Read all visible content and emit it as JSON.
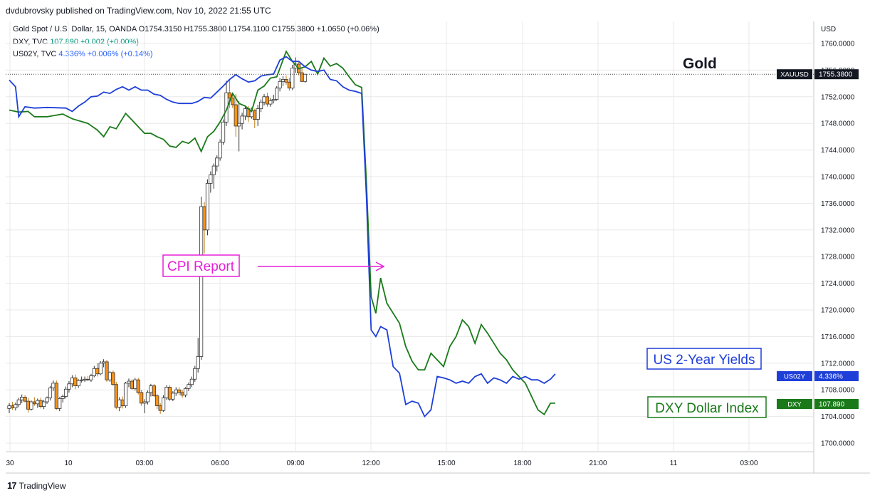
{
  "publisher_line": "dvdubrovsky published on TradingView.com, Nov 10, 2022 21:55 UTC",
  "legend": {
    "gold": {
      "symbol": "Gold Spot / U.S. Dollar, 15, OANDA",
      "ohlc": "O1754.3150  H1755.3800  L1754.1100  C1755.3800",
      "change": "+1.0650 (+0.06%)"
    },
    "dxy": {
      "symbol": "DXY, TVC",
      "value": "107.890",
      "change": "+0.002 (+0.00%)"
    },
    "us02y": {
      "symbol": "US02Y, TVC",
      "value": "4.336%",
      "change": "+0.006% (+0.14%)"
    }
  },
  "footer": {
    "brand": "TradingView",
    "mark": "17"
  },
  "colors": {
    "up": "#ffffff",
    "down": "#f7931a",
    "dxy": "#1a7a1a",
    "us02y": "#1e3fd8",
    "annotation": "#e620d8",
    "grid": "#e8e8e8"
  },
  "chart_data": {
    "type": "candlestick",
    "title": "Gold Spot / U.S. Dollar",
    "ylim": [
      1698.0,
      1763.0
    ],
    "y_ticks": [
      "1760.0000",
      "1756.0000",
      "1752.0000",
      "1748.0000",
      "1744.0000",
      "1740.0000",
      "1736.0000",
      "1732.0000",
      "1728.0000",
      "1724.0000",
      "1720.0000",
      "1716.0000",
      "1712.0000",
      "1708.0000",
      "1704.0000",
      "1700.0000"
    ],
    "x_ticks": [
      "30",
      "10",
      "03:00",
      "06:00",
      "09:00",
      "12:00",
      "15:00",
      "18:00",
      "21:00",
      "11",
      "03:00"
    ],
    "price_tags": {
      "xauusd": {
        "label": "XAUUSD",
        "value": "1755.3800"
      },
      "us02y": {
        "label": "US02Y",
        "value": "4.336%"
      },
      "dxy": {
        "label": "DXY",
        "value": "107.890"
      }
    },
    "annotations": {
      "cpi": "CPI Report",
      "gold": "Gold",
      "us2y": "US 2-Year Yields",
      "dxy": "DXY Dollar Index"
    },
    "candles": [
      [
        1705.2,
        1706.0,
        1704.5,
        1705.6
      ],
      [
        1705.6,
        1706.2,
        1705.0,
        1705.3
      ],
      [
        1705.3,
        1706.1,
        1704.9,
        1705.8
      ],
      [
        1705.8,
        1706.8,
        1705.4,
        1706.5
      ],
      [
        1706.5,
        1707.3,
        1706.0,
        1706.9
      ],
      [
        1706.9,
        1707.2,
        1706.1,
        1706.3
      ],
      [
        1706.3,
        1706.8,
        1704.6,
        1705.1
      ],
      [
        1705.1,
        1706.4,
        1704.9,
        1706.2
      ],
      [
        1706.2,
        1706.9,
        1705.6,
        1705.9
      ],
      [
        1705.9,
        1706.7,
        1705.3,
        1706.4
      ],
      [
        1706.4,
        1706.8,
        1705.2,
        1705.5
      ],
      [
        1705.5,
        1706.5,
        1705.1,
        1706.2
      ],
      [
        1706.2,
        1707.0,
        1705.9,
        1706.8
      ],
      [
        1706.8,
        1708.6,
        1706.4,
        1708.3
      ],
      [
        1708.3,
        1709.4,
        1707.8,
        1709.0
      ],
      [
        1709.0,
        1709.4,
        1705.0,
        1705.2
      ],
      [
        1705.2,
        1706.9,
        1704.8,
        1706.7
      ],
      [
        1706.7,
        1707.3,
        1706.1,
        1707.0
      ],
      [
        1707.0,
        1708.5,
        1706.7,
        1708.1
      ],
      [
        1708.1,
        1709.3,
        1707.6,
        1708.9
      ],
      [
        1708.9,
        1710.2,
        1708.4,
        1709.8
      ],
      [
        1709.8,
        1710.3,
        1708.1,
        1708.6
      ],
      [
        1708.6,
        1709.6,
        1708.3,
        1709.4
      ],
      [
        1709.4,
        1710.0,
        1709.1,
        1709.5
      ],
      [
        1709.5,
        1710.0,
        1709.2,
        1709.6
      ],
      [
        1709.6,
        1710.1,
        1709.3,
        1709.5
      ],
      [
        1709.5,
        1710.4,
        1709.2,
        1710.1
      ],
      [
        1710.1,
        1711.6,
        1709.9,
        1711.2
      ],
      [
        1711.2,
        1712.0,
        1710.0,
        1710.4
      ],
      [
        1710.4,
        1712.3,
        1710.2,
        1712.0
      ],
      [
        1712.0,
        1712.6,
        1711.4,
        1712.2
      ],
      [
        1712.2,
        1712.5,
        1709.2,
        1709.5
      ],
      [
        1709.5,
        1710.8,
        1709.2,
        1710.6
      ],
      [
        1710.6,
        1710.9,
        1708.6,
        1708.8
      ],
      [
        1708.8,
        1709.2,
        1705.1,
        1705.4
      ],
      [
        1705.4,
        1706.9,
        1704.8,
        1706.5
      ],
      [
        1706.5,
        1707.0,
        1705.2,
        1705.6
      ],
      [
        1705.6,
        1709.2,
        1705.3,
        1709.0
      ],
      [
        1709.0,
        1709.7,
        1708.4,
        1709.3
      ],
      [
        1709.3,
        1709.6,
        1708.0,
        1708.2
      ],
      [
        1708.2,
        1709.8,
        1707.9,
        1709.5
      ],
      [
        1709.5,
        1709.8,
        1707.3,
        1707.6
      ],
      [
        1707.6,
        1708.0,
        1705.6,
        1706.0
      ],
      [
        1706.0,
        1706.6,
        1704.5,
        1706.2
      ],
      [
        1706.2,
        1707.9,
        1705.8,
        1707.6
      ],
      [
        1707.6,
        1708.9,
        1707.0,
        1708.6
      ],
      [
        1708.6,
        1708.9,
        1706.9,
        1707.1
      ],
      [
        1707.1,
        1707.4,
        1705.1,
        1705.6
      ],
      [
        1705.6,
        1706.0,
        1704.4,
        1704.9
      ],
      [
        1704.9,
        1707.2,
        1704.7,
        1706.8
      ],
      [
        1706.8,
        1708.7,
        1706.5,
        1708.4
      ],
      [
        1708.4,
        1708.7,
        1706.3,
        1706.6
      ],
      [
        1706.6,
        1707.8,
        1706.3,
        1707.5
      ],
      [
        1707.5,
        1708.4,
        1707.1,
        1708.0
      ],
      [
        1708.0,
        1708.4,
        1707.2,
        1707.6
      ],
      [
        1707.6,
        1708.0,
        1706.8,
        1707.2
      ],
      [
        1707.2,
        1708.4,
        1706.9,
        1708.2
      ],
      [
        1708.2,
        1709.1,
        1707.8,
        1708.8
      ],
      [
        1708.8,
        1710.0,
        1708.4,
        1709.6
      ],
      [
        1709.6,
        1711.6,
        1709.2,
        1711.2
      ],
      [
        1711.2,
        1715.8,
        1710.6,
        1713.0
      ],
      [
        1713.0,
        1737.0,
        1712.5,
        1735.5
      ],
      [
        1735.5,
        1736.2,
        1728.5,
        1732.0
      ],
      [
        1732.0,
        1739.6,
        1731.2,
        1739.0
      ],
      [
        1739.0,
        1740.8,
        1737.6,
        1740.3
      ],
      [
        1740.3,
        1742.0,
        1738.2,
        1741.6
      ],
      [
        1741.6,
        1743.2,
        1740.8,
        1742.8
      ],
      [
        1742.8,
        1745.6,
        1742.4,
        1745.2
      ],
      [
        1745.2,
        1748.6,
        1744.8,
        1748.2
      ],
      [
        1748.2,
        1754.4,
        1747.6,
        1752.6
      ],
      [
        1752.6,
        1754.6,
        1750.3,
        1751.8
      ],
      [
        1751.8,
        1752.6,
        1750.3,
        1750.8
      ],
      [
        1750.8,
        1752.4,
        1746.0,
        1747.6
      ],
      [
        1747.6,
        1751.3,
        1743.8,
        1748.0
      ],
      [
        1748.0,
        1749.6,
        1747.1,
        1749.1
      ],
      [
        1749.1,
        1750.6,
        1748.5,
        1750.2
      ],
      [
        1750.2,
        1750.6,
        1748.2,
        1749.0
      ],
      [
        1749.0,
        1750.4,
        1748.7,
        1749.9
      ],
      [
        1749.9,
        1750.2,
        1747.3,
        1748.6
      ],
      [
        1748.6,
        1750.8,
        1747.6,
        1750.2
      ],
      [
        1750.2,
        1751.6,
        1749.7,
        1751.2
      ],
      [
        1751.2,
        1752.4,
        1750.7,
        1752.0
      ],
      [
        1752.0,
        1752.6,
        1750.5,
        1750.9
      ],
      [
        1750.9,
        1751.8,
        1750.5,
        1751.4
      ],
      [
        1751.4,
        1752.3,
        1751.0,
        1751.6
      ],
      [
        1751.6,
        1753.6,
        1751.4,
        1753.3
      ],
      [
        1753.3,
        1754.8,
        1752.8,
        1754.3
      ],
      [
        1754.3,
        1755.1,
        1753.6,
        1754.6
      ],
      [
        1754.6,
        1755.2,
        1753.8,
        1754.2
      ],
      [
        1754.2,
        1754.8,
        1752.9,
        1753.3
      ],
      [
        1753.3,
        1756.8,
        1753.0,
        1756.3
      ],
      [
        1756.3,
        1757.9,
        1755.6,
        1756.9
      ],
      [
        1756.9,
        1757.3,
        1755.2,
        1755.6
      ],
      [
        1755.6,
        1756.4,
        1754.2,
        1754.3
      ],
      [
        1754.3,
        1755.4,
        1754.1,
        1755.38
      ]
    ],
    "dxy_series": [
      [
        0,
        1750.0
      ],
      [
        3,
        1749.7
      ],
      [
        6,
        1749.8
      ],
      [
        8,
        1749.0
      ],
      [
        12,
        1749.0
      ],
      [
        17,
        1749.4
      ],
      [
        20,
        1748.7
      ],
      [
        25,
        1748.0
      ],
      [
        28,
        1747.0
      ],
      [
        30,
        1746.0
      ],
      [
        32,
        1747.5
      ],
      [
        34,
        1747.2
      ],
      [
        37,
        1749.5
      ],
      [
        39,
        1748.5
      ],
      [
        41,
        1747.5
      ],
      [
        43,
        1746.5
      ],
      [
        45,
        1746.5
      ],
      [
        47,
        1746.0
      ],
      [
        49,
        1745.6
      ],
      [
        51,
        1744.6
      ],
      [
        53,
        1744.4
      ],
      [
        55,
        1745.3
      ],
      [
        57,
        1745.0
      ],
      [
        59,
        1745.8
      ],
      [
        61,
        1743.8
      ],
      [
        63,
        1746.0
      ],
      [
        65,
        1746.8
      ],
      [
        67,
        1748.2
      ],
      [
        69,
        1750.0
      ],
      [
        71,
        1752.5
      ],
      [
        73,
        1751.0
      ],
      [
        75,
        1750.6
      ],
      [
        77,
        1749.8
      ],
      [
        79,
        1753.0
      ],
      [
        81,
        1753.6
      ],
      [
        83,
        1754.8
      ],
      [
        85,
        1755.0
      ],
      [
        88,
        1758.8
      ],
      [
        90,
        1757.3
      ],
      [
        92,
        1756.2
      ],
      [
        94,
        1756.5
      ],
      [
        96,
        1757.3
      ],
      [
        98,
        1755.4
      ],
      [
        100,
        1757.8
      ],
      [
        102,
        1756.6
      ],
      [
        104,
        1757.0
      ],
      [
        106,
        1756.3
      ],
      [
        108,
        1755.0
      ],
      [
        110,
        1753.8
      ],
      [
        112,
        1753.4
      ],
      [
        113.5,
        1739.0
      ],
      [
        115.0,
        1722.0
      ],
      [
        116.5,
        1719.5
      ],
      [
        118,
        1724.8
      ],
      [
        120,
        1721.0
      ],
      [
        122,
        1719.5
      ],
      [
        124,
        1718.0
      ],
      [
        126,
        1714.5
      ],
      [
        128,
        1712.3
      ],
      [
        130,
        1711.0
      ],
      [
        132,
        1711.0
      ],
      [
        134,
        1713.5
      ],
      [
        136,
        1712.5
      ],
      [
        138,
        1711.5
      ],
      [
        140,
        1714.5
      ],
      [
        142,
        1716.0
      ],
      [
        144,
        1718.5
      ],
      [
        146,
        1717.5
      ],
      [
        148,
        1715.0
      ],
      [
        150,
        1717.8
      ],
      [
        152,
        1716.5
      ],
      [
        154,
        1715.0
      ],
      [
        156,
        1713.5
      ],
      [
        158,
        1712.5
      ],
      [
        160,
        1711.0
      ],
      [
        162,
        1710.0
      ],
      [
        164,
        1709.0
      ],
      [
        166,
        1707.0
      ],
      [
        168,
        1705.0
      ],
      [
        170,
        1704.3
      ],
      [
        172,
        1706.0
      ],
      [
        173.5,
        1706.0
      ]
    ],
    "us02y_series": [
      [
        0,
        1754.5
      ],
      [
        2,
        1753.5
      ],
      [
        3,
        1749.0
      ],
      [
        5,
        1750.5
      ],
      [
        8,
        1750.3
      ],
      [
        12,
        1750.4
      ],
      [
        18,
        1750.3
      ],
      [
        20,
        1749.8
      ],
      [
        22,
        1750.6
      ],
      [
        24,
        1751.2
      ],
      [
        26,
        1752.0
      ],
      [
        28,
        1752.1
      ],
      [
        30,
        1752.7
      ],
      [
        32,
        1752.5
      ],
      [
        34,
        1753.1
      ],
      [
        36,
        1753.5
      ],
      [
        38,
        1753.0
      ],
      [
        40,
        1753.5
      ],
      [
        42,
        1753.0
      ],
      [
        44,
        1753.0
      ],
      [
        46,
        1752.4
      ],
      [
        48,
        1752.2
      ],
      [
        50,
        1751.6
      ],
      [
        52,
        1751.2
      ],
      [
        54,
        1751.0
      ],
      [
        56,
        1751.0
      ],
      [
        58,
        1751.0
      ],
      [
        60,
        1751.3
      ],
      [
        62,
        1751.9
      ],
      [
        64,
        1751.8
      ],
      [
        66,
        1752.7
      ],
      [
        68,
        1753.6
      ],
      [
        70,
        1754.6
      ],
      [
        72,
        1755.3
      ],
      [
        74,
        1754.7
      ],
      [
        76,
        1754.2
      ],
      [
        78,
        1754.4
      ],
      [
        80,
        1755.1
      ],
      [
        82,
        1755.3
      ],
      [
        84,
        1755.4
      ],
      [
        86,
        1757.5
      ],
      [
        88,
        1758.0
      ],
      [
        90,
        1757.3
      ],
      [
        92,
        1757.3
      ],
      [
        94,
        1756.5
      ],
      [
        96,
        1756.0
      ],
      [
        98,
        1755.8
      ],
      [
        100,
        1756.0
      ],
      [
        102,
        1754.6
      ],
      [
        104,
        1754.4
      ],
      [
        106,
        1753.5
      ],
      [
        108,
        1753.0
      ],
      [
        110,
        1752.8
      ],
      [
        112,
        1752.5
      ],
      [
        113.5,
        1737.0
      ],
      [
        115.0,
        1717.0
      ],
      [
        116.5,
        1716.0
      ],
      [
        118,
        1717.5
      ],
      [
        120,
        1717.0
      ],
      [
        122,
        1711.5
      ],
      [
        124,
        1710.5
      ],
      [
        126,
        1705.8
      ],
      [
        128,
        1706.3
      ],
      [
        130,
        1706.0
      ],
      [
        132,
        1704.0
      ],
      [
        134,
        1705.0
      ],
      [
        136,
        1710.0
      ],
      [
        138,
        1709.8
      ],
      [
        140,
        1709.5
      ],
      [
        142,
        1709.0
      ],
      [
        144,
        1709.3
      ],
      [
        146,
        1709.0
      ],
      [
        148,
        1710.0
      ],
      [
        150,
        1710.4
      ],
      [
        152,
        1709.0
      ],
      [
        154,
        1709.8
      ],
      [
        156,
        1709.5
      ],
      [
        158,
        1709.0
      ],
      [
        160,
        1710.0
      ],
      [
        162,
        1709.6
      ],
      [
        164,
        1710.0
      ],
      [
        166,
        1709.5
      ],
      [
        168,
        1709.5
      ],
      [
        170,
        1709.0
      ],
      [
        172,
        1709.6
      ],
      [
        173.5,
        1710.4
      ]
    ]
  }
}
